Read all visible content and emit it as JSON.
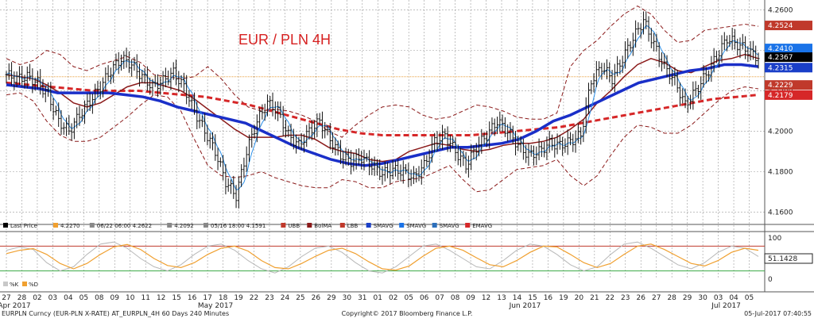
{
  "chart_data": {
    "type": "line",
    "title": "EUR / PLN 4H",
    "ylim": [
      4.155,
      4.265
    ],
    "yticks": [
      4.16,
      4.18,
      4.2,
      4.22,
      4.24,
      4.26
    ],
    "ytick_labels": [
      "4.1600",
      "4.1800",
      "4.2000",
      "4.2200",
      "4.2400",
      "4.2600"
    ],
    "grid": true,
    "day_labels": [
      "27",
      "28",
      "02",
      "03",
      "04",
      "05",
      "08",
      "09",
      "10",
      "11",
      "12",
      "15",
      "16",
      "17",
      "18",
      "19",
      "22",
      "23",
      "24",
      "25",
      "26",
      "29",
      "30",
      "31",
      "01",
      "02",
      "05",
      "06",
      "07",
      "08",
      "09",
      "12",
      "13",
      "14",
      "15",
      "16",
      "19",
      "20",
      "21",
      "22",
      "23",
      "26",
      "27",
      "28",
      "29",
      "30",
      "03",
      "04",
      "05"
    ],
    "month_labels": [
      "Apr 2017",
      "May 2017",
      "Jun 2017",
      "Jul 2017"
    ],
    "last_value_labels": [
      {
        "value": "4.2524",
        "color": "#c0392b"
      },
      {
        "value": "4.2410",
        "color": "#1a73e8"
      },
      {
        "value": "4.2367",
        "color": "#000000"
      },
      {
        "value": "4.2315",
        "color": "#1a3fc8"
      },
      {
        "value": "4.2229",
        "color": "#c0392b"
      },
      {
        "value": "4.2179",
        "color": "#d62728"
      }
    ],
    "reference_line": 4.227,
    "legend": [
      {
        "label": "Last Price",
        "color": "#000000"
      },
      {
        "label": "4.2270",
        "color": "#f0a030"
      },
      {
        "label": "06/22 06:00 4.2622",
        "color": "#888888"
      },
      {
        "label": "4.2092",
        "color": "#888888"
      },
      {
        "label": "05/16 18:00 4.1591",
        "color": "#888888"
      },
      {
        "label": "UBB",
        "color": "#c0392b"
      },
      {
        "label": "BolMA",
        "color": "#8b1a1a"
      },
      {
        "label": "LBB",
        "color": "#c0392b"
      },
      {
        "label": "SMAVG",
        "color": "#1a3fc8"
      },
      {
        "label": "SMAVG",
        "color": "#1a73e8"
      },
      {
        "label": "SMAVG",
        "color": "#2c6fbb"
      },
      {
        "label": "EMAVG",
        "color": "#d62728"
      }
    ],
    "close_series": [
      4.228,
      4.226,
      4.227,
      4.224,
      4.218,
      4.205,
      4.2,
      4.208,
      4.215,
      4.222,
      4.23,
      4.236,
      4.233,
      4.227,
      4.222,
      4.225,
      4.229,
      4.222,
      4.21,
      4.2,
      4.19,
      4.175,
      4.168,
      4.19,
      4.205,
      4.214,
      4.21,
      4.198,
      4.193,
      4.2,
      4.205,
      4.196,
      4.188,
      4.185,
      4.187,
      4.183,
      4.179,
      4.181,
      4.18,
      4.177,
      4.183,
      4.195,
      4.198,
      4.19,
      4.183,
      4.192,
      4.198,
      4.205,
      4.2,
      4.193,
      4.188,
      4.19,
      4.194,
      4.193,
      4.195,
      4.198,
      4.225,
      4.232,
      4.226,
      4.236,
      4.246,
      4.255,
      4.243,
      4.232,
      4.225,
      4.213,
      4.22,
      4.228,
      4.237,
      4.246,
      4.243,
      4.24,
      4.236
    ],
    "bolma_series": [
      4.228,
      4.227,
      4.226,
      4.223,
      4.219,
      4.214,
      4.212,
      4.214,
      4.218,
      4.222,
      4.224,
      4.224,
      4.222,
      4.22,
      4.216,
      4.211,
      4.206,
      4.201,
      4.197,
      4.197,
      4.197,
      4.198,
      4.198,
      4.196,
      4.192,
      4.19,
      4.189,
      4.186,
      4.185,
      4.186,
      4.19,
      4.192,
      4.194,
      4.193,
      4.191,
      4.19,
      4.191,
      4.193,
      4.194,
      4.194,
      4.195,
      4.197,
      4.201,
      4.206,
      4.214,
      4.22,
      4.227,
      4.233,
      4.236,
      4.234,
      4.23,
      4.229,
      4.232,
      4.235,
      4.236,
      4.238,
      4.236
    ],
    "ubb_series": [
      4.236,
      4.233,
      4.235,
      4.24,
      4.238,
      4.232,
      4.23,
      4.233,
      4.235,
      4.237,
      4.234,
      4.228,
      4.227,
      4.226,
      4.227,
      4.232,
      4.226,
      4.218,
      4.212,
      4.21,
      4.211,
      4.21,
      4.208,
      4.205,
      4.2,
      4.197,
      4.203,
      4.208,
      4.212,
      4.213,
      4.212,
      4.208,
      4.206,
      4.207,
      4.21,
      4.213,
      4.212,
      4.21,
      4.207,
      4.206,
      4.206,
      4.209,
      4.232,
      4.24,
      4.245,
      4.252,
      4.258,
      4.262,
      4.258,
      4.25,
      4.244,
      4.245,
      4.25,
      4.251,
      4.252,
      4.253,
      4.252
    ],
    "lbb_series": [
      4.218,
      4.219,
      4.215,
      4.205,
      4.198,
      4.195,
      4.195,
      4.197,
      4.202,
      4.207,
      4.213,
      4.218,
      4.217,
      4.21,
      4.196,
      4.183,
      4.178,
      4.177,
      4.178,
      4.18,
      4.177,
      4.175,
      4.173,
      4.172,
      4.172,
      4.176,
      4.175,
      4.172,
      4.172,
      4.175,
      4.176,
      4.177,
      4.18,
      4.183,
      4.176,
      4.17,
      4.171,
      4.176,
      4.181,
      4.182,
      4.183,
      4.186,
      4.178,
      4.173,
      4.178,
      4.188,
      4.197,
      4.203,
      4.202,
      4.199,
      4.199,
      4.203,
      4.209,
      4.215,
      4.22,
      4.222,
      4.221
    ],
    "sma_thick_series": [
      4.223,
      4.222,
      4.221,
      4.219,
      4.219,
      4.219,
      4.219,
      4.218,
      4.217,
      4.215,
      4.212,
      4.21,
      4.208,
      4.206,
      4.204,
      4.2,
      4.196,
      4.192,
      4.189,
      4.186,
      4.184,
      4.183,
      4.184,
      4.186,
      4.188,
      4.19,
      4.192,
      4.192,
      4.193,
      4.194,
      4.196,
      4.2,
      4.205,
      4.208,
      4.212,
      4.216,
      4.22,
      4.224,
      4.226,
      4.228,
      4.23,
      4.231,
      4.233,
      4.233,
      4.232
    ],
    "ema_series": [
      4.224,
      4.223,
      4.222,
      4.221,
      4.22,
      4.22,
      4.22,
      4.219,
      4.218,
      4.217,
      4.215,
      4.213,
      4.21,
      4.207,
      4.204,
      4.201,
      4.199,
      4.198,
      4.198,
      4.198,
      4.198,
      4.198,
      4.199,
      4.2,
      4.201,
      4.202,
      4.204,
      4.206,
      4.208,
      4.21,
      4.212,
      4.214,
      4.216,
      4.217,
      4.218
    ],
    "sub_panel": {
      "yticks": [
        0,
        50,
        100
      ],
      "ytick_labels": [
        "0",
        "50",
        "100"
      ],
      "last_value": "51.1428",
      "upper_band": 80,
      "lower_band": 20,
      "legend": [
        {
          "label": "%K",
          "color": "#c8c8c8"
        },
        {
          "label": "%D",
          "color": "#f0a030"
        }
      ],
      "k_series": [
        70,
        78,
        72,
        40,
        20,
        30,
        60,
        85,
        90,
        75,
        50,
        30,
        20,
        35,
        60,
        80,
        85,
        70,
        45,
        25,
        15,
        30,
        55,
        75,
        80,
        65,
        40,
        20,
        15,
        30,
        55,
        80,
        85,
        70,
        50,
        30,
        25,
        45,
        70,
        85,
        80,
        60,
        35,
        20,
        30,
        60,
        85,
        90,
        75,
        55,
        35,
        25,
        40,
        65,
        80,
        75,
        55
      ],
      "d_series": [
        62,
        70,
        74,
        60,
        38,
        25,
        38,
        60,
        78,
        84,
        72,
        50,
        33,
        28,
        40,
        60,
        75,
        80,
        68,
        45,
        28,
        25,
        38,
        55,
        70,
        75,
        62,
        42,
        25,
        22,
        32,
        55,
        75,
        80,
        70,
        52,
        35,
        30,
        45,
        65,
        80,
        78,
        60,
        40,
        28,
        38,
        60,
        80,
        85,
        72,
        55,
        38,
        32,
        45,
        65,
        75,
        70
      ]
    },
    "footer": {
      "left": "EURPLN Curncy (EUR-PLN X-RATE) AT_EURPLN_4H 60 Days 240 Minutes",
      "center": "Copyright© 2017 Bloomberg Finance L.P.",
      "right": "05-Jul-2017 07:40:55"
    }
  }
}
